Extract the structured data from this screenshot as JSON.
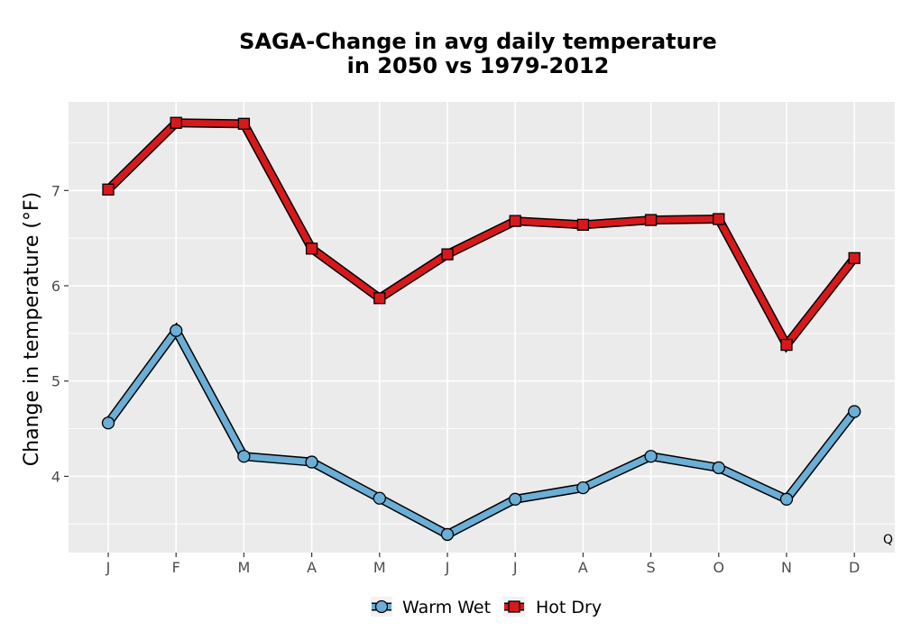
{
  "chart_data": {
    "type": "line",
    "title_lines": [
      "SAGA-Change in avg daily temperature",
      "in 2050 vs 1979-2012"
    ],
    "xlabel": "",
    "ylabel": "Change in temperature (°F)",
    "categories": [
      "J",
      "F",
      "M",
      "A",
      "M",
      "J",
      "J",
      "A",
      "S",
      "O",
      "N",
      "D"
    ],
    "ylim": [
      3.2,
      7.93
    ],
    "yticks": [
      4,
      5,
      6,
      7
    ],
    "grid": true,
    "legend_position": "bottom",
    "corner_label": "Q",
    "series": [
      {
        "name": "Warm Wet",
        "marker": "circle",
        "color": "#6baed6",
        "values": [
          4.56,
          5.53,
          4.21,
          4.15,
          3.77,
          3.39,
          3.76,
          3.88,
          4.21,
          4.09,
          3.76,
          4.68
        ]
      },
      {
        "name": "Hot Dry",
        "marker": "square",
        "color": "#d7191c",
        "values": [
          7.01,
          7.71,
          7.7,
          6.39,
          5.87,
          6.33,
          6.68,
          6.64,
          6.69,
          6.7,
          5.38,
          6.29
        ]
      }
    ]
  }
}
